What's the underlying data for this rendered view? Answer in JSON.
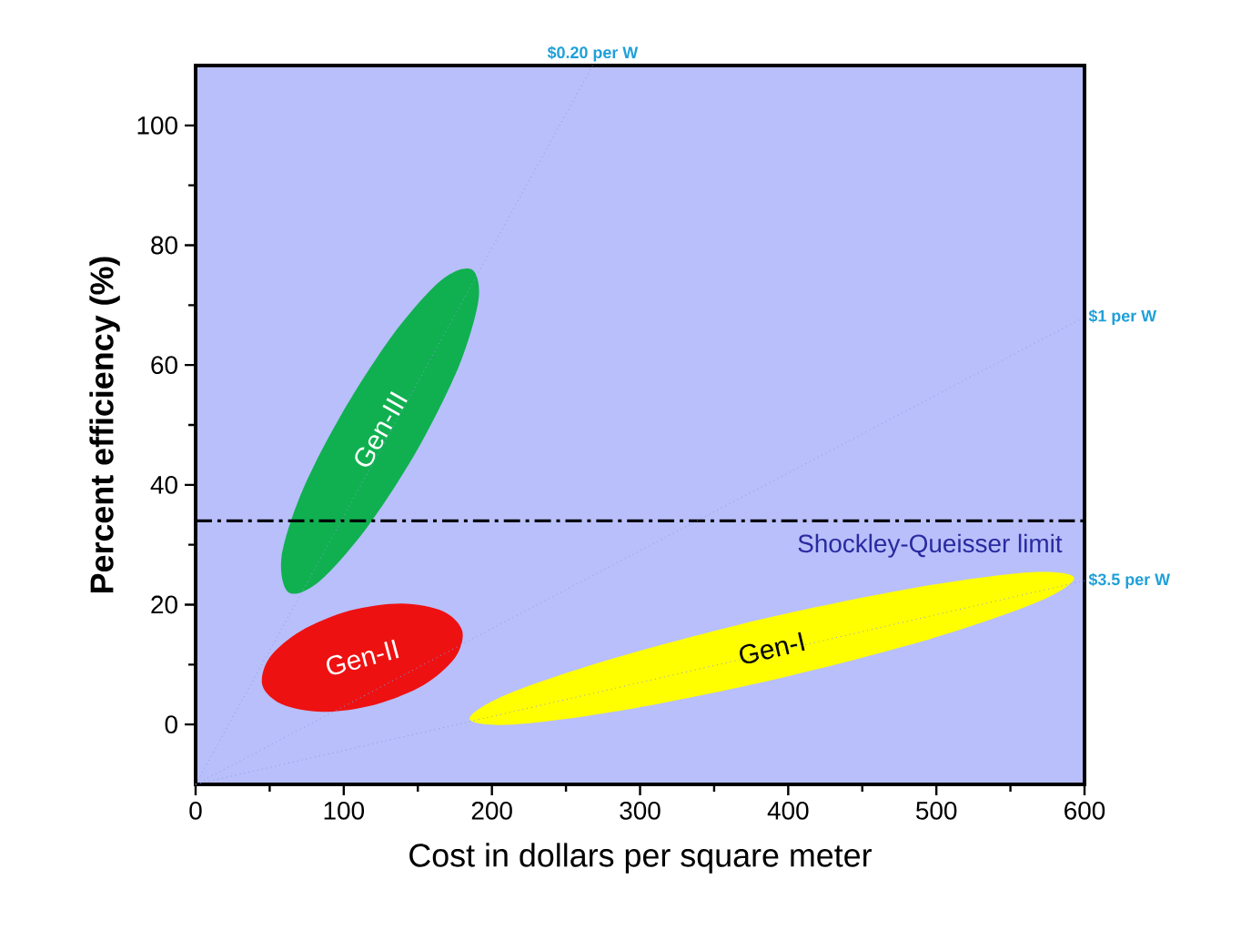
{
  "chart_data": {
    "type": "line",
    "xlabel": "Cost in dollars per square meter",
    "ylabel": "Percent efficiency (%)",
    "xlim": [
      0,
      600
    ],
    "ylim": [
      -10,
      110
    ],
    "xticks": [
      0,
      100,
      200,
      300,
      400,
      500,
      600
    ],
    "yticks": [
      0,
      20,
      40,
      60,
      80,
      100
    ],
    "series": [
      {
        "name": "$0.20 per W",
        "line_style": "dotted",
        "color": "#8c9be0",
        "x": [
          0,
          268
        ],
        "values": [
          -10,
          110
        ]
      },
      {
        "name": "$1 per W",
        "line_style": "dotted",
        "color": "#8c9be0",
        "x": [
          0,
          600
        ],
        "values": [
          -10,
          68
        ]
      },
      {
        "name": "$3.5 per W",
        "line_style": "dotted",
        "color": "#8c9be0",
        "x": [
          0,
          600
        ],
        "values": [
          -10,
          24
        ]
      },
      {
        "name": "Gen-III",
        "type": "area",
        "color": "#10b050",
        "x": [
          186,
          191,
          178,
          150,
          116,
          84,
          63,
          58,
          72,
          99,
          133,
          165
        ],
        "values": [
          76,
          71,
          60,
          46,
          33,
          24,
          22,
          28,
          39,
          52,
          65,
          74
        ]
      },
      {
        "name": "Gen-II",
        "type": "area",
        "color": "#ee1111",
        "x": [
          180,
          175,
          154,
          121,
          86,
          58,
          45,
          50,
          71,
          104,
          139,
          167
        ],
        "values": [
          15.6,
          11.1,
          6.6,
          3.3,
          2.1,
          3.4,
          6.6,
          11.2,
          15.6,
          19.0,
          20.2,
          18.9
        ]
      },
      {
        "name": "Gen-I",
        "type": "area",
        "color": "#ffff00",
        "x": [
          593,
          568,
          495,
          394,
          291,
          215,
          185,
          210,
          283,
          384,
          487,
          563
        ],
        "values": [
          24.5,
          20.4,
          14.2,
          7.7,
          2.5,
          0.0,
          0.9,
          5.0,
          11.1,
          17.7,
          22.9,
          25.4
        ]
      }
    ],
    "ref_lines": [
      {
        "axis": "y",
        "value": 34,
        "label": "Shockley-Queisser limit",
        "color": "#000000",
        "line_style": "dashdot"
      }
    ]
  }
}
